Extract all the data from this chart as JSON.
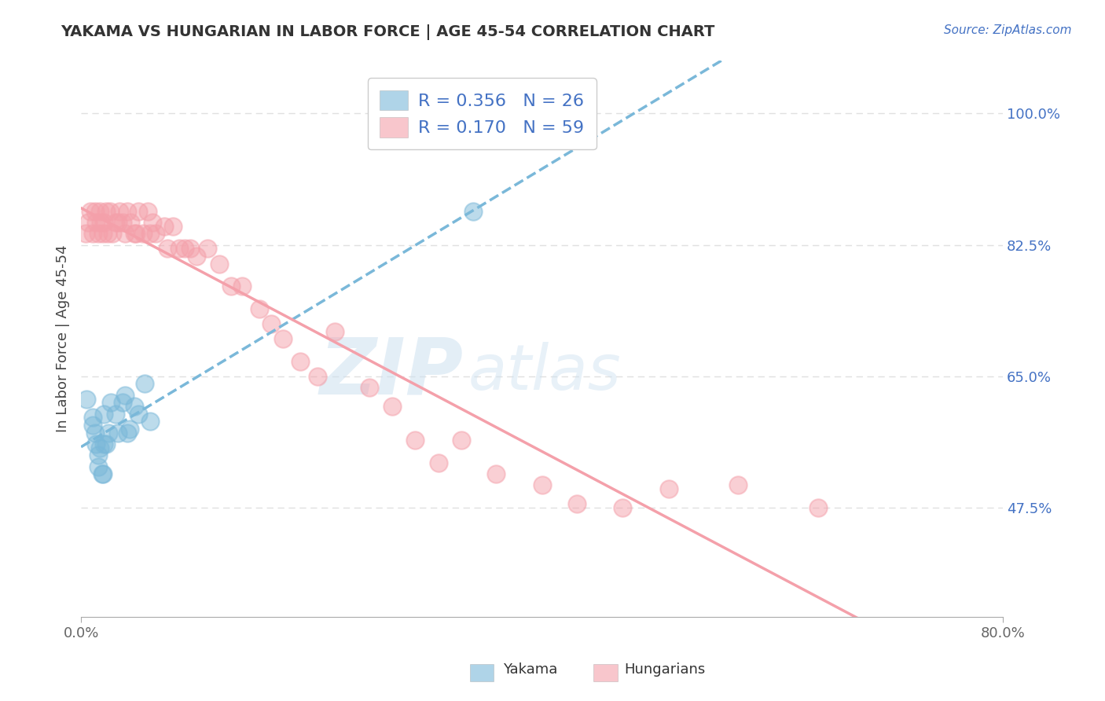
{
  "title": "YAKAMA VS HUNGARIAN IN LABOR FORCE | AGE 45-54 CORRELATION CHART",
  "source_text": "Source: ZipAtlas.com",
  "ylabel": "In Labor Force | Age 45-54",
  "xlim": [
    0.0,
    0.8
  ],
  "ylim": [
    0.33,
    1.07
  ],
  "xticklabels": [
    "0.0%",
    "80.0%"
  ],
  "yticklabels_right": [
    "47.5%",
    "65.0%",
    "82.5%",
    "100.0%"
  ],
  "ytick_values_right": [
    0.475,
    0.65,
    0.825,
    1.0
  ],
  "grid_color": "#e0e0e0",
  "background_color": "#ffffff",
  "yakama_color": "#7ab8d9",
  "hungarian_color": "#f4a0aa",
  "yakama_R": 0.356,
  "yakama_N": 26,
  "hungarian_R": 0.17,
  "hungarian_N": 59,
  "watermark_zip": "ZIP",
  "watermark_atlas": "atlas",
  "legend_yakama": "Yakama",
  "legend_hungarian": "Hungarians",
  "yakama_x": [
    0.005,
    0.01,
    0.01,
    0.012,
    0.013,
    0.015,
    0.015,
    0.016,
    0.018,
    0.019,
    0.02,
    0.02,
    0.022,
    0.024,
    0.026,
    0.03,
    0.032,
    0.036,
    0.038,
    0.04,
    0.042,
    0.046,
    0.05,
    0.055,
    0.06,
    0.34
  ],
  "yakama_y": [
    0.62,
    0.595,
    0.585,
    0.575,
    0.56,
    0.545,
    0.53,
    0.555,
    0.52,
    0.52,
    0.56,
    0.6,
    0.56,
    0.575,
    0.615,
    0.6,
    0.575,
    0.615,
    0.625,
    0.575,
    0.58,
    0.61,
    0.6,
    0.64,
    0.59,
    0.87
  ],
  "hungarian_x": [
    0.004,
    0.006,
    0.008,
    0.01,
    0.012,
    0.013,
    0.015,
    0.016,
    0.017,
    0.019,
    0.02,
    0.022,
    0.023,
    0.025,
    0.027,
    0.03,
    0.032,
    0.033,
    0.036,
    0.038,
    0.04,
    0.043,
    0.046,
    0.048,
    0.05,
    0.054,
    0.058,
    0.06,
    0.062,
    0.065,
    0.072,
    0.075,
    0.08,
    0.085,
    0.09,
    0.095,
    0.1,
    0.11,
    0.12,
    0.13,
    0.14,
    0.155,
    0.165,
    0.175,
    0.19,
    0.205,
    0.22,
    0.25,
    0.27,
    0.29,
    0.31,
    0.33,
    0.36,
    0.4,
    0.43,
    0.47,
    0.51,
    0.57,
    0.64
  ],
  "hungarian_y": [
    0.84,
    0.855,
    0.87,
    0.84,
    0.87,
    0.855,
    0.84,
    0.87,
    0.855,
    0.84,
    0.855,
    0.87,
    0.84,
    0.87,
    0.84,
    0.855,
    0.855,
    0.87,
    0.855,
    0.84,
    0.87,
    0.855,
    0.84,
    0.84,
    0.87,
    0.84,
    0.87,
    0.84,
    0.855,
    0.84,
    0.85,
    0.82,
    0.85,
    0.82,
    0.82,
    0.82,
    0.81,
    0.82,
    0.8,
    0.77,
    0.77,
    0.74,
    0.72,
    0.7,
    0.67,
    0.65,
    0.71,
    0.635,
    0.61,
    0.565,
    0.535,
    0.565,
    0.52,
    0.505,
    0.48,
    0.475,
    0.5,
    0.505,
    0.475
  ]
}
